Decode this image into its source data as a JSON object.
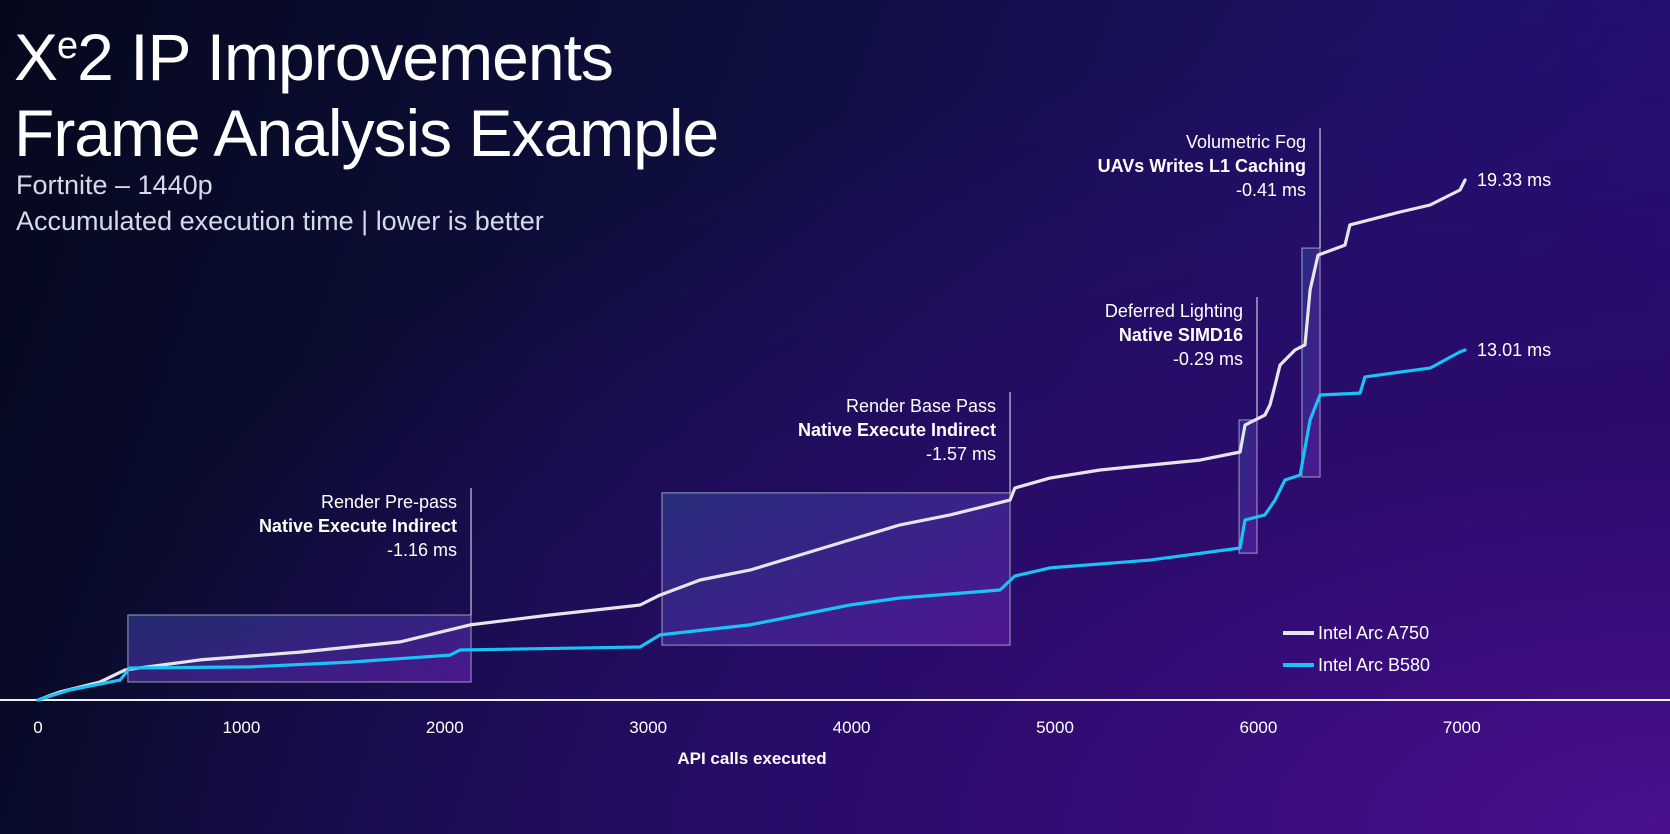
{
  "header": {
    "title_line1_prefix": "X",
    "title_line1_sup": "e",
    "title_line1_rest": "2 IP Improvements",
    "title_line2": "Frame Analysis Example",
    "subtitle1": "Fortnite – 1440p",
    "subtitle2": "Accumulated execution time | lower is better"
  },
  "chart_data": {
    "type": "line",
    "title": "Xe2 IP Improvements Frame Analysis Example",
    "xlabel": "API calls executed",
    "ylabel": "",
    "xlim": [
      0,
      7500
    ],
    "ylim": [
      0,
      19.33
    ],
    "xticks": [
      0,
      1000,
      2000,
      3000,
      4000,
      5000,
      6000,
      7000
    ],
    "xtick_labels": [
      "0",
      "1000",
      "2000",
      "3000",
      "4000",
      "5000",
      "6000",
      "7000"
    ],
    "grid": false,
    "legend_position": "bottom-right",
    "series": [
      {
        "name": "Intel Arc A750",
        "color": "#e6e6ea",
        "end_label": "19.33 ms",
        "x": [
          0,
          108,
          305,
          428,
          796,
          1288,
          1780,
          2124,
          2517,
          2960,
          3058,
          3255,
          3500,
          3746,
          3992,
          4238,
          4484,
          4779,
          4803,
          4975,
          5221,
          5713,
          5910,
          5934,
          6032,
          6057,
          6082,
          6106,
          6180,
          6229,
          6254,
          6293,
          6426,
          6450,
          6696,
          6844,
          6991,
          7016
        ],
        "y": [
          0,
          0.3,
          0.67,
          1.12,
          1.49,
          1.78,
          2.16,
          2.79,
          3.16,
          3.53,
          3.9,
          4.46,
          4.83,
          5.39,
          5.95,
          6.51,
          6.88,
          7.43,
          7.88,
          8.25,
          8.55,
          8.92,
          9.22,
          10.22,
          10.59,
          10.97,
          11.71,
          12.45,
          13.01,
          13.2,
          15.24,
          16.54,
          16.91,
          17.66,
          18.14,
          18.4,
          18.96,
          19.33
        ]
      },
      {
        "name": "Intel Arc B580",
        "color": "#19c3f5",
        "end_label": "13.01 ms",
        "x": [
          0,
          157,
          403,
          452,
          1042,
          1534,
          2026,
          2075,
          2960,
          3058,
          3500,
          3746,
          3992,
          4238,
          4730,
          4803,
          4975,
          5467,
          5910,
          5934,
          6032,
          6082,
          6131,
          6205,
          6254,
          6303,
          6500,
          6524,
          6696,
          6844,
          6991,
          7016
        ],
        "y": [
          0,
          0.37,
          0.74,
          1.19,
          1.23,
          1.41,
          1.67,
          1.86,
          1.97,
          2.42,
          2.79,
          3.16,
          3.53,
          3.79,
          4.09,
          4.61,
          4.91,
          5.2,
          5.65,
          6.69,
          6.88,
          7.43,
          8.18,
          8.36,
          10.41,
          11.34,
          11.41,
          12.01,
          12.19,
          12.34,
          12.94,
          13.01
        ]
      }
    ],
    "annotations": [
      {
        "region": "Render Pre-pass",
        "feature": "Native Execute Indirect",
        "delta": "-1.16 ms",
        "x_range": [
          442,
          2129
        ],
        "y_range": [
          0.67,
          3.16
        ],
        "line_top_ms": 7.88
      },
      {
        "region": "Render Base Pass",
        "feature": "Native Execute Indirect",
        "delta": "-1.57 ms",
        "x_range": [
          3068,
          4779
        ],
        "y_range": [
          2.04,
          7.7
        ],
        "line_top_ms": 11.45
      },
      {
        "region": "Deferred Lighting",
        "feature": "Native SIMD16",
        "delta": "-0.29 ms",
        "x_range": [
          5905,
          5993
        ],
        "y_range": [
          5.46,
          10.41
        ],
        "line_top_ms": 14.98
      },
      {
        "region": "Volumetric Fog",
        "feature": "UAVs Writes L1 Caching",
        "delta": "-0.41 ms",
        "x_range": [
          6214,
          6303
        ],
        "y_range": [
          8.29,
          16.8
        ],
        "line_top_ms": 21.26
      }
    ]
  }
}
